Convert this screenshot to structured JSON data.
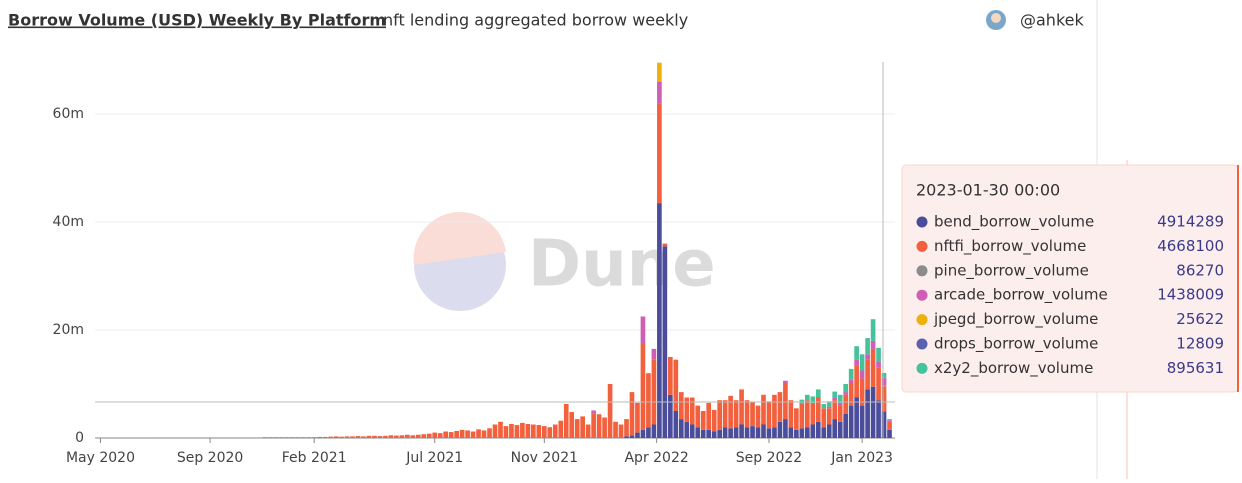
{
  "chart_data": {
    "type": "stacked-bar",
    "title": "Borrow Volume (USD) Weekly By Platform",
    "subtitle": "nft lending aggregated borrow weekly",
    "author": "@ahkek",
    "watermark": "Dune",
    "x": [
      0,
      1,
      2,
      3,
      4,
      5,
      6,
      7,
      8,
      9,
      10,
      11,
      12,
      13,
      14,
      15,
      16,
      17,
      18,
      19,
      20,
      21,
      22,
      23,
      24,
      25,
      26,
      27,
      28,
      29,
      30,
      31,
      32,
      33,
      34,
      35,
      36,
      37,
      38,
      39,
      40,
      41,
      42,
      43,
      44,
      45,
      46,
      47,
      48,
      49,
      50,
      51,
      52,
      53,
      54,
      55,
      56,
      57,
      58,
      59,
      60,
      61,
      62,
      63,
      64,
      65,
      66,
      67,
      68,
      69,
      70,
      71,
      72,
      73,
      74,
      75,
      76,
      77,
      78,
      79,
      80,
      81,
      82,
      83,
      84,
      85,
      86,
      87,
      88,
      89,
      90,
      91,
      92,
      93,
      94,
      95,
      96,
      97,
      98,
      99,
      100,
      101,
      102,
      103,
      104,
      105,
      106,
      107,
      108,
      109,
      110,
      111,
      112,
      113,
      114,
      115,
      116,
      117,
      118,
      119,
      120,
      121,
      122,
      123,
      124,
      125,
      126,
      127,
      128,
      129,
      130,
      131,
      132,
      133,
      134,
      135,
      136,
      137,
      138,
      139,
      140,
      141,
      142,
      143,
      144
    ],
    "xlim": [
      -1,
      145
    ],
    "xticks": [
      {
        "value": 0,
        "label": "May 2020"
      },
      {
        "value": 20,
        "label": "Sep 2020"
      },
      {
        "value": 39,
        "label": "Feb 2021"
      },
      {
        "value": 61,
        "label": "Jul 2021"
      },
      {
        "value": 81,
        "label": "Nov 2021"
      },
      {
        "value": 101.5,
        "label": "Apr 2022"
      },
      {
        "value": 122,
        "label": "Sep 2022"
      },
      {
        "value": 139,
        "label": "Jan 2023"
      }
    ],
    "ylim": [
      0,
      70000000
    ],
    "yticks": [
      0,
      {
        "value": 20000000,
        "label": "20m"
      },
      {
        "value": 40000000,
        "label": "40m"
      },
      {
        "value": 60000000,
        "label": "60m"
      }
    ],
    "grid": true,
    "series": [
      {
        "name": "bend_borrow_volume",
        "color": "#4b4d9b",
        "values": [
          0,
          0,
          0,
          0,
          0,
          0,
          0,
          0,
          0,
          0,
          0,
          0,
          0,
          0,
          0,
          0,
          0,
          0,
          0,
          0,
          0,
          0,
          0,
          0,
          0,
          0,
          0,
          0,
          0,
          0,
          0,
          0,
          0,
          0,
          0,
          0,
          0,
          0,
          0,
          0,
          0,
          0,
          0,
          0,
          0,
          0,
          0,
          0,
          0,
          0,
          0,
          0,
          0,
          0,
          0,
          0,
          0,
          0,
          0,
          0,
          0,
          0,
          0,
          0,
          0,
          0,
          0,
          0,
          0,
          0,
          0,
          0,
          0,
          0,
          0,
          0,
          0,
          0,
          0,
          0,
          0,
          0,
          0,
          0,
          0,
          0,
          0,
          0,
          0,
          0,
          0,
          0,
          0,
          0,
          0,
          0,
          300000,
          500000,
          1000000,
          1500000,
          2000000,
          2500000,
          43500000,
          35500000,
          8000000,
          5000000,
          3500000,
          3000000,
          2500000,
          2000000,
          1500000,
          1500000,
          1200000,
          1500000,
          2000000,
          1800000,
          2000000,
          2500000,
          2000000,
          2200000,
          2000000,
          2500000,
          1800000,
          2000000,
          3000000,
          3500000,
          2000000,
          1500000,
          1800000,
          2000000,
          2500000,
          3000000,
          2000000,
          2500000,
          3500000,
          3000000,
          4500000,
          6000000,
          7500000,
          6000000,
          9000000,
          9500000,
          7000000,
          4914289,
          1500000
        ]
      },
      {
        "name": "nftfi_borrow_volume",
        "color": "#f2603e",
        "values": [
          50000,
          50000,
          50000,
          50000,
          50000,
          50000,
          50000,
          50000,
          50000,
          50000,
          100000,
          100000,
          100000,
          100000,
          100000,
          100000,
          100000,
          100000,
          100000,
          100000,
          100000,
          100000,
          100000,
          100000,
          100000,
          100000,
          100000,
          100000,
          100000,
          100000,
          150000,
          150000,
          150000,
          150000,
          150000,
          150000,
          150000,
          150000,
          150000,
          150000,
          200000,
          200000,
          250000,
          300000,
          250000,
          300000,
          300000,
          350000,
          300000,
          400000,
          400000,
          350000,
          400000,
          500000,
          450000,
          500000,
          600000,
          500000,
          600000,
          700000,
          800000,
          1000000,
          900000,
          1200000,
          1100000,
          1300000,
          1500000,
          1400000,
          1200000,
          1600000,
          1400000,
          1800000,
          2500000,
          3000000,
          2200000,
          2600000,
          2400000,
          2800000,
          2600000,
          2500000,
          2400000,
          2200000,
          2000000,
          2500000,
          3200000,
          6300000,
          4800000,
          3500000,
          4000000,
          2500000,
          4600000,
          4400000,
          3800000,
          10000000,
          3000000,
          2500000,
          3200000,
          8000000,
          5500000,
          16000000,
          10000000,
          12000000,
          18500000,
          500000,
          7000000,
          9500000,
          5000000,
          4500000,
          5000000,
          4000000,
          3500000,
          5000000,
          4000000,
          5500000,
          5000000,
          6000000,
          5000000,
          6500000,
          5000000,
          4500000,
          4000000,
          5500000,
          5000000,
          6000000,
          5500000,
          6500000,
          5000000,
          4000000,
          4500000,
          5000000,
          4000000,
          4500000,
          3500000,
          3000000,
          3500000,
          3000000,
          3500000,
          4000000,
          6000000,
          5000000,
          5500000,
          7000000,
          6000000,
          4668100,
          1500000
        ]
      },
      {
        "name": "pine_borrow_volume",
        "color": "#8c8c8c",
        "values": [
          0,
          0,
          0,
          0,
          0,
          0,
          0,
          0,
          0,
          0,
          0,
          0,
          0,
          0,
          0,
          0,
          0,
          0,
          0,
          0,
          0,
          0,
          0,
          0,
          0,
          0,
          0,
          0,
          0,
          0,
          0,
          0,
          0,
          0,
          0,
          0,
          0,
          0,
          0,
          0,
          0,
          0,
          0,
          0,
          0,
          0,
          0,
          0,
          0,
          0,
          0,
          0,
          0,
          0,
          0,
          0,
          0,
          0,
          0,
          0,
          0,
          0,
          0,
          0,
          0,
          0,
          0,
          0,
          0,
          0,
          0,
          0,
          0,
          0,
          0,
          0,
          0,
          0,
          0,
          0,
          0,
          0,
          0,
          0,
          0,
          0,
          0,
          0,
          0,
          0,
          0,
          0,
          0,
          0,
          0,
          0,
          0,
          0,
          0,
          0,
          0,
          0,
          0,
          0,
          0,
          0,
          0,
          0,
          0,
          0,
          0,
          0,
          0,
          0,
          0,
          0,
          0,
          0,
          0,
          0,
          0,
          0,
          0,
          0,
          0,
          0,
          0,
          0,
          0,
          0,
          0,
          0,
          0,
          0,
          0,
          0,
          0,
          0,
          0,
          0,
          0,
          0,
          0,
          86270,
          0
        ]
      },
      {
        "name": "arcade_borrow_volume",
        "color": "#cf5eb4",
        "values": [
          0,
          0,
          0,
          0,
          0,
          0,
          0,
          0,
          0,
          0,
          0,
          0,
          0,
          0,
          0,
          0,
          0,
          0,
          0,
          0,
          0,
          0,
          0,
          0,
          0,
          0,
          0,
          0,
          0,
          0,
          0,
          0,
          0,
          0,
          0,
          0,
          0,
          0,
          0,
          0,
          0,
          0,
          0,
          0,
          0,
          0,
          0,
          0,
          0,
          0,
          0,
          0,
          0,
          0,
          0,
          0,
          0,
          0,
          0,
          0,
          0,
          0,
          0,
          0,
          0,
          0,
          0,
          0,
          0,
          0,
          0,
          0,
          0,
          0,
          0,
          0,
          0,
          0,
          0,
          0,
          0,
          0,
          0,
          0,
          0,
          0,
          0,
          0,
          0,
          0,
          500000,
          0,
          0,
          0,
          0,
          0,
          0,
          0,
          0,
          5000000,
          0,
          2000000,
          4000000,
          0,
          0,
          0,
          0,
          0,
          0,
          0,
          0,
          0,
          0,
          0,
          0,
          0,
          0,
          0,
          0,
          0,
          0,
          0,
          0,
          0,
          0,
          600000,
          0,
          0,
          0,
          0,
          0,
          0,
          0,
          300000,
          400000,
          500000,
          500000,
          800000,
          1000000,
          1500000,
          1000000,
          1500000,
          1200000,
          1438009,
          300000
        ]
      },
      {
        "name": "jpegd_borrow_volume",
        "color": "#efb00c",
        "values": [
          0,
          0,
          0,
          0,
          0,
          0,
          0,
          0,
          0,
          0,
          0,
          0,
          0,
          0,
          0,
          0,
          0,
          0,
          0,
          0,
          0,
          0,
          0,
          0,
          0,
          0,
          0,
          0,
          0,
          0,
          0,
          0,
          0,
          0,
          0,
          0,
          0,
          0,
          0,
          0,
          0,
          0,
          0,
          0,
          0,
          0,
          0,
          0,
          0,
          0,
          0,
          0,
          0,
          0,
          0,
          0,
          0,
          0,
          0,
          0,
          0,
          0,
          0,
          0,
          0,
          0,
          0,
          0,
          0,
          0,
          0,
          0,
          0,
          0,
          0,
          0,
          0,
          0,
          0,
          0,
          0,
          0,
          0,
          0,
          0,
          0,
          0,
          0,
          0,
          0,
          0,
          0,
          0,
          0,
          0,
          0,
          0,
          0,
          0,
          0,
          0,
          0,
          3500000,
          0,
          0,
          0,
          0,
          0,
          0,
          0,
          0,
          0,
          0,
          0,
          0,
          0,
          0,
          0,
          0,
          0,
          0,
          0,
          0,
          0,
          0,
          0,
          0,
          0,
          0,
          0,
          0,
          0,
          0,
          0,
          0,
          0,
          0,
          0,
          0,
          0,
          0,
          0,
          0,
          25622,
          0
        ]
      },
      {
        "name": "drops_borrow_volume",
        "color": "#5a5fb0",
        "values": [
          0,
          0,
          0,
          0,
          0,
          0,
          0,
          0,
          0,
          0,
          0,
          0,
          0,
          0,
          0,
          0,
          0,
          0,
          0,
          0,
          0,
          0,
          0,
          0,
          0,
          0,
          0,
          0,
          0,
          0,
          0,
          0,
          0,
          0,
          0,
          0,
          0,
          0,
          0,
          0,
          0,
          0,
          0,
          0,
          0,
          0,
          0,
          0,
          0,
          0,
          0,
          0,
          0,
          0,
          0,
          0,
          0,
          0,
          0,
          0,
          0,
          0,
          0,
          0,
          0,
          0,
          0,
          0,
          0,
          0,
          0,
          0,
          0,
          0,
          0,
          0,
          0,
          0,
          0,
          0,
          0,
          0,
          0,
          0,
          0,
          0,
          0,
          0,
          0,
          0,
          0,
          0,
          0,
          0,
          0,
          0,
          0,
          0,
          0,
          0,
          0,
          0,
          0,
          0,
          0,
          0,
          0,
          0,
          0,
          0,
          0,
          0,
          0,
          0,
          0,
          0,
          0,
          0,
          0,
          0,
          0,
          0,
          0,
          0,
          0,
          0,
          0,
          0,
          0,
          0,
          0,
          0,
          0,
          0,
          0,
          0,
          0,
          0,
          0,
          0,
          0,
          0,
          0,
          12809,
          0
        ]
      },
      {
        "name": "x2y2_borrow_volume",
        "color": "#45c29c",
        "values": [
          0,
          0,
          0,
          0,
          0,
          0,
          0,
          0,
          0,
          0,
          0,
          0,
          0,
          0,
          0,
          0,
          0,
          0,
          0,
          0,
          0,
          0,
          0,
          0,
          0,
          0,
          0,
          0,
          0,
          0,
          0,
          0,
          0,
          0,
          0,
          0,
          0,
          0,
          0,
          0,
          0,
          0,
          0,
          0,
          0,
          0,
          0,
          0,
          0,
          0,
          0,
          0,
          0,
          0,
          0,
          0,
          0,
          0,
          0,
          0,
          0,
          0,
          0,
          0,
          0,
          0,
          0,
          0,
          0,
          0,
          0,
          0,
          0,
          0,
          0,
          0,
          0,
          0,
          0,
          0,
          0,
          0,
          0,
          0,
          0,
          0,
          0,
          0,
          0,
          0,
          0,
          0,
          0,
          0,
          0,
          0,
          0,
          0,
          0,
          0,
          0,
          0,
          0,
          0,
          0,
          0,
          0,
          0,
          0,
          0,
          0,
          0,
          0,
          0,
          0,
          0,
          0,
          0,
          0,
          0,
          0,
          0,
          0,
          0,
          0,
          0,
          0,
          0,
          800000,
          1000000,
          1200000,
          1500000,
          800000,
          1000000,
          1200000,
          1500000,
          1500000,
          2000000,
          2500000,
          3000000,
          3000000,
          4000000,
          2500000,
          895631,
          200000
        ]
      }
    ],
    "tooltip": {
      "title": "2023-01-30 00:00",
      "values": [
        4914289,
        4668100,
        86270,
        1438009,
        25622,
        12809,
        895631
      ]
    }
  }
}
